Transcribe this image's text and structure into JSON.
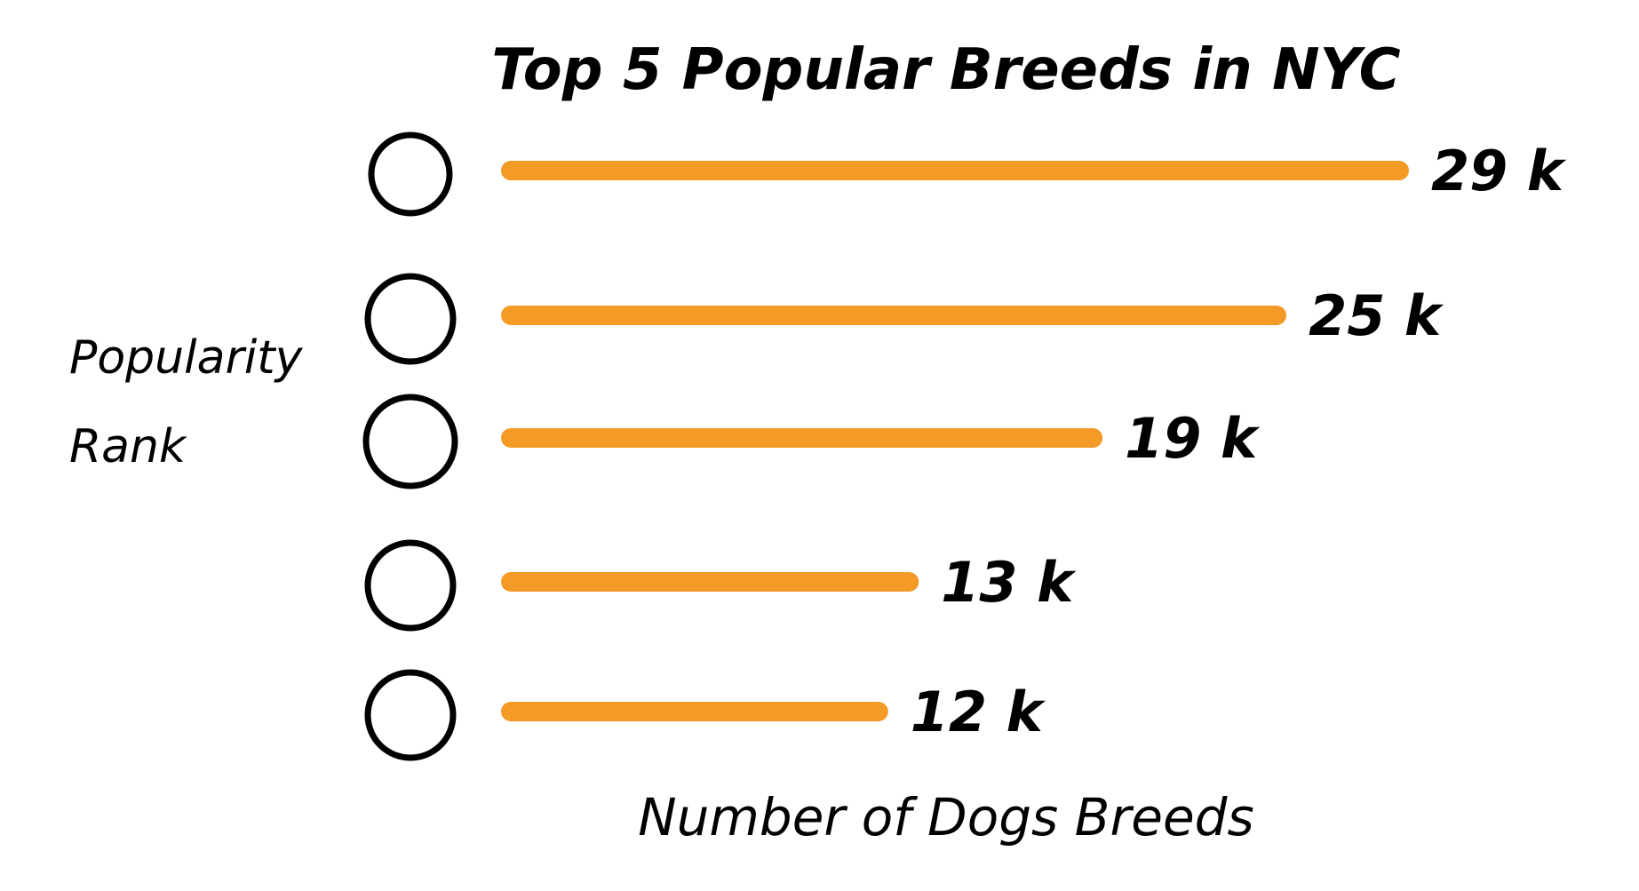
{
  "chart_data": {
    "type": "bar",
    "orientation": "horizontal",
    "title": "Top 5 Popular Breeds in NYC",
    "xlabel": "Number of Dogs Breeds",
    "ylabel": "Popularity Rank",
    "categories": [
      "",
      "",
      "",
      "",
      ""
    ],
    "values": [
      29,
      25,
      19,
      13,
      12
    ],
    "value_labels": [
      "29 k",
      "25 k",
      "19 k",
      "13 k",
      "12 k"
    ],
    "value_unit": "k",
    "xlim": [
      0,
      29
    ],
    "grid": false,
    "legend": "none",
    "bar_color": "#F39A27",
    "marker": "circle"
  }
}
